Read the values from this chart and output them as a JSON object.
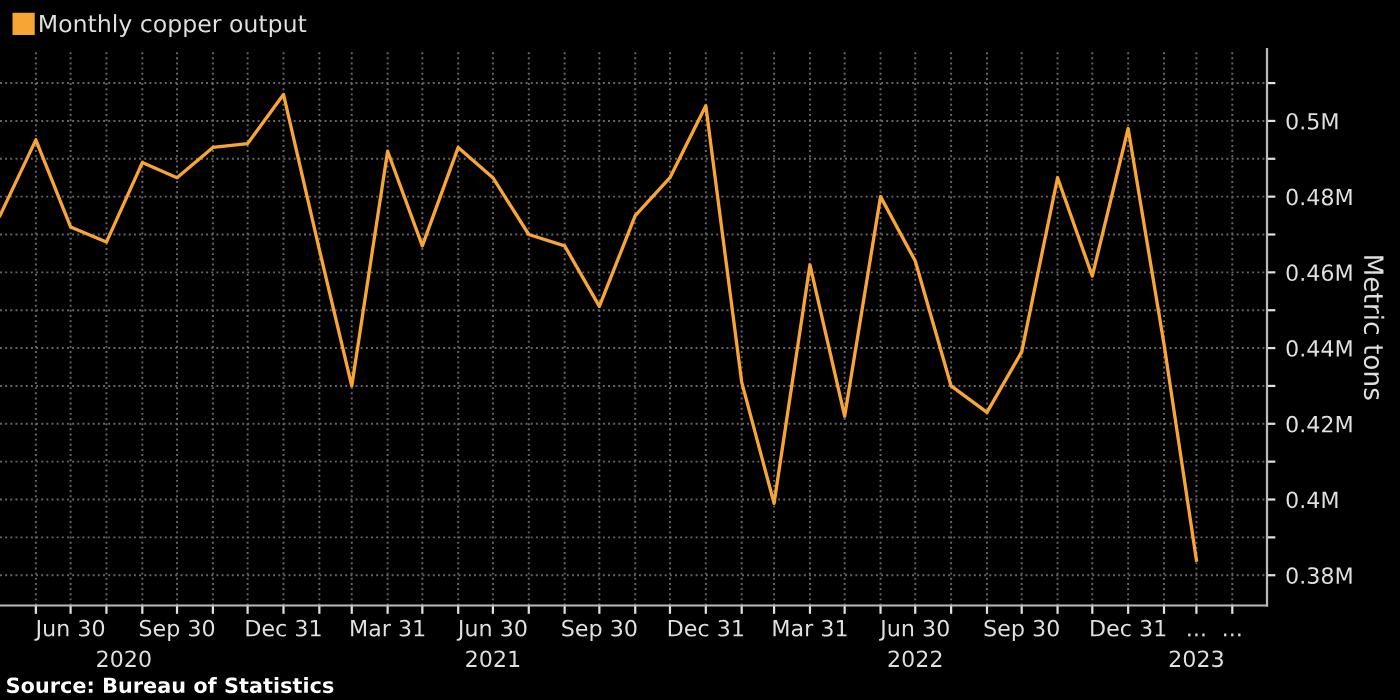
{
  "chart_data": {
    "type": "line",
    "ylabel": "Metric tons",
    "legend": "top left",
    "grid": true,
    "line_style": "solid",
    "marker": "none",
    "annotations": [
      "Source: Bureau of Statistics"
    ],
    "x": [
      "2020-04-30",
      "2020-05-31",
      "2020-06-30",
      "2020-07-31",
      "2020-08-31",
      "2020-09-30",
      "2020-10-31",
      "2020-11-30",
      "2020-12-31",
      "2021-01-31",
      "2021-02-28",
      "2021-03-31",
      "2021-04-30",
      "2021-05-31",
      "2021-06-30",
      "2021-07-31",
      "2021-08-31",
      "2021-09-30",
      "2021-10-31",
      "2021-11-30",
      "2021-12-31",
      "2022-01-31",
      "2022-02-28",
      "2022-03-31",
      "2022-04-30",
      "2022-05-31",
      "2022-06-30",
      "2022-07-31",
      "2022-08-31",
      "2022-09-30",
      "2022-10-31",
      "2022-11-30",
      "2022-12-31",
      "2023-01-31",
      "2023-02-28"
    ],
    "series": [
      {
        "name": "Monthly copper output",
        "color": "#f7a535",
        "values": [
          0.475,
          0.495,
          0.472,
          0.468,
          0.489,
          0.485,
          0.493,
          0.494,
          0.507,
          0.466,
          0.43,
          0.492,
          0.467,
          0.493,
          0.485,
          0.47,
          0.467,
          0.451,
          0.475,
          0.485,
          0.504,
          0.431,
          0.399,
          0.462,
          0.422,
          0.48,
          0.463,
          0.43,
          0.423,
          0.439,
          0.485,
          0.459,
          0.498,
          0.441,
          0.384
        ]
      }
    ],
    "xlim": [
      "2020-04-30",
      "2023-04-30"
    ],
    "xticks": [
      {
        "value": "2020-05-31",
        "label": null
      },
      {
        "value": "2020-06-30",
        "label": "Jun 30"
      },
      {
        "value": "2020-07-31",
        "label": null
      },
      {
        "value": "2020-08-31",
        "label": null
      },
      {
        "value": "2020-09-30",
        "label": "Sep 30"
      },
      {
        "value": "2020-10-31",
        "label": null
      },
      {
        "value": "2020-11-30",
        "label": null
      },
      {
        "value": "2020-12-31",
        "label": "Dec 31"
      },
      {
        "value": "2021-01-31",
        "label": null
      },
      {
        "value": "2021-02-28",
        "label": null
      },
      {
        "value": "2021-03-31",
        "label": "Mar 31"
      },
      {
        "value": "2021-04-30",
        "label": null
      },
      {
        "value": "2021-05-31",
        "label": null
      },
      {
        "value": "2021-06-30",
        "label": "Jun 30"
      },
      {
        "value": "2021-07-31",
        "label": null
      },
      {
        "value": "2021-08-31",
        "label": null
      },
      {
        "value": "2021-09-30",
        "label": "Sep 30"
      },
      {
        "value": "2021-10-31",
        "label": null
      },
      {
        "value": "2021-11-30",
        "label": null
      },
      {
        "value": "2021-12-31",
        "label": "Dec 31"
      },
      {
        "value": "2022-01-31",
        "label": null
      },
      {
        "value": "2022-02-28",
        "label": null
      },
      {
        "value": "2022-03-31",
        "label": "Mar 31"
      },
      {
        "value": "2022-04-30",
        "label": null
      },
      {
        "value": "2022-05-31",
        "label": null
      },
      {
        "value": "2022-06-30",
        "label": "Jun 30"
      },
      {
        "value": "2022-07-31",
        "label": null
      },
      {
        "value": "2022-08-31",
        "label": null
      },
      {
        "value": "2022-09-30",
        "label": "Sep 30"
      },
      {
        "value": "2022-10-31",
        "label": null
      },
      {
        "value": "2022-11-30",
        "label": null
      },
      {
        "value": "2022-12-31",
        "label": "Dec 31"
      },
      {
        "value": "2023-01-31",
        "label": null
      },
      {
        "value": "2023-02-28",
        "label": "..."
      },
      {
        "value": "2023-03-31",
        "label": "..."
      }
    ],
    "x2lim": [
      "2020-04-30",
      "2023-04-30"
    ],
    "x2ticks": [
      {
        "value": "2020-08-15",
        "label": "2020"
      },
      {
        "value": "2021-06-30",
        "label": "2021"
      },
      {
        "value": "2022-06-30",
        "label": "2022"
      },
      {
        "value": "2023-02-28",
        "label": "2023"
      }
    ],
    "ylim": [
      0.372,
      0.519
    ],
    "yticks": [
      {
        "value": 0.38,
        "label": "0.38M"
      },
      {
        "value": 0.39,
        "label": null
      },
      {
        "value": 0.4,
        "label": "0.4M"
      },
      {
        "value": 0.41,
        "label": null
      },
      {
        "value": 0.42,
        "label": "0.42M"
      },
      {
        "value": 0.43,
        "label": null
      },
      {
        "value": 0.44,
        "label": "0.44M"
      },
      {
        "value": 0.45,
        "label": null
      },
      {
        "value": 0.46,
        "label": "0.46M"
      },
      {
        "value": 0.47,
        "label": null
      },
      {
        "value": 0.48,
        "label": "0.48M"
      },
      {
        "value": 0.49,
        "label": null
      },
      {
        "value": 0.5,
        "label": "0.5M"
      },
      {
        "value": 0.51,
        "label": null
      }
    ]
  }
}
